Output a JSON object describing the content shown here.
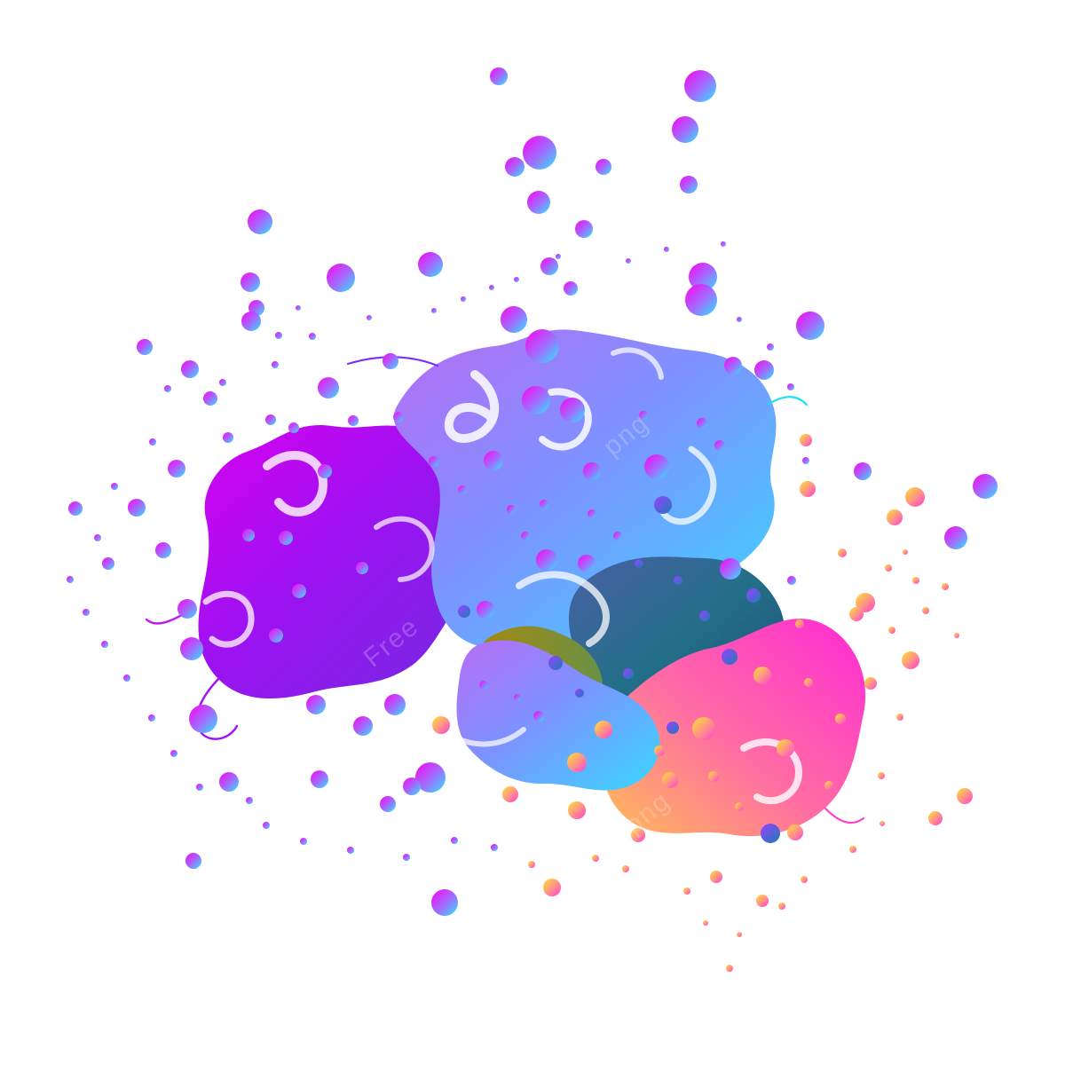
{
  "artwork": {
    "subject": "paint-splash",
    "background_color": "#ffffff",
    "palette": {
      "magenta": "#d100e6",
      "purple": "#7a1de0",
      "violet": "#9b5cf0",
      "blue": "#4f8bff",
      "cyan": "#1fe3ff",
      "teal": "#2d7f95",
      "olive": "#7f7a20",
      "pink": "#ff4dbd",
      "orange": "#ffb14a",
      "yellow": "#ffd23f"
    }
  },
  "watermarks": {
    "top": "png",
    "middle": "Free",
    "bottom": "png"
  }
}
